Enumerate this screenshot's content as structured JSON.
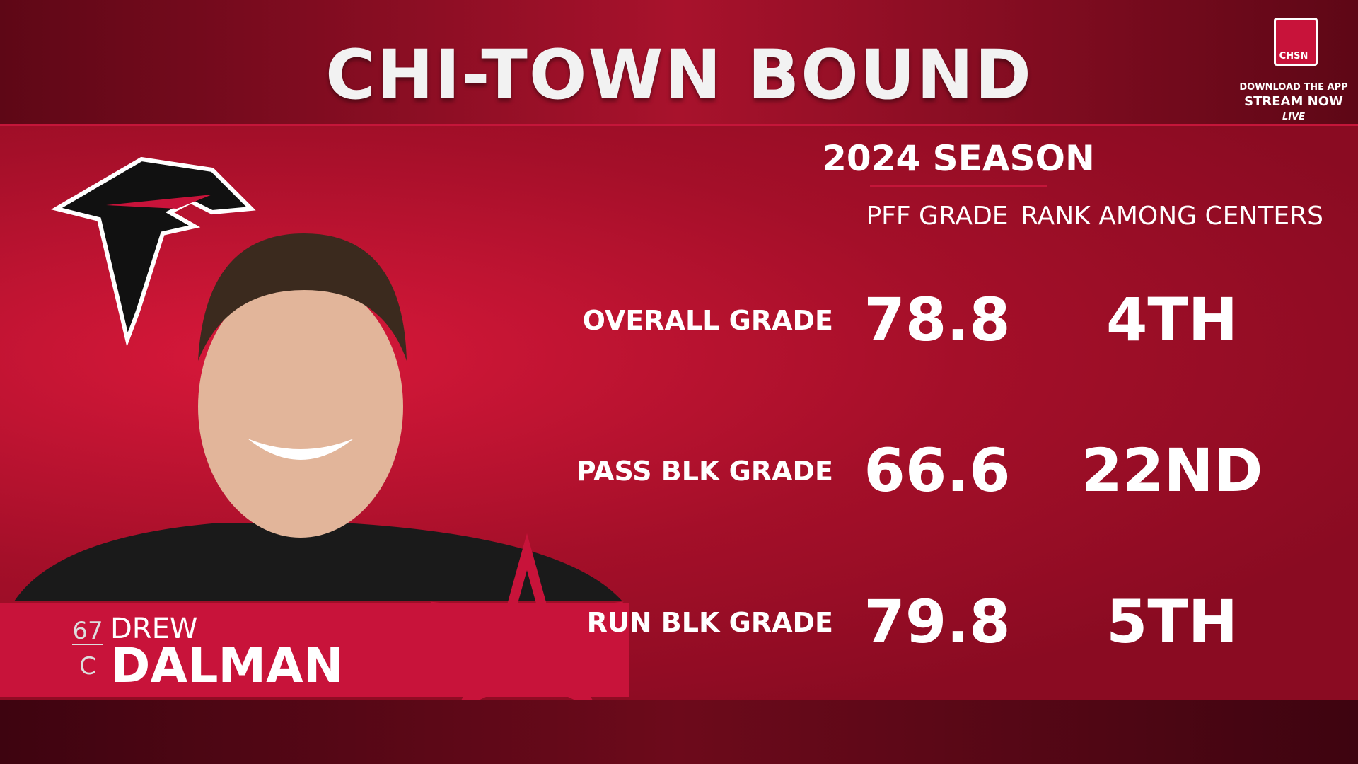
{
  "header": {
    "title": "CHI-TOWN BOUND"
  },
  "network": {
    "logo": "CHSN",
    "tagline": "DOWNLOAD THE APP",
    "cta": "STREAM NOW",
    "status": "LIVE"
  },
  "table": {
    "title": "2024 SEASON",
    "columns": [
      "PFF GRADE",
      "RANK AMONG CENTERS"
    ],
    "rows": [
      {
        "label": "OVERALL GRADE",
        "grade": 78.8,
        "rank": "4TH"
      },
      {
        "label": "PASS BLK GRADE",
        "grade": 66.6,
        "rank": "22ND"
      },
      {
        "label": "RUN BLK GRADE",
        "grade": 79.8,
        "rank": "5TH"
      }
    ]
  },
  "player": {
    "number": 67,
    "position": "C",
    "first_name": "DREW",
    "last_name": "DALMAN"
  }
}
